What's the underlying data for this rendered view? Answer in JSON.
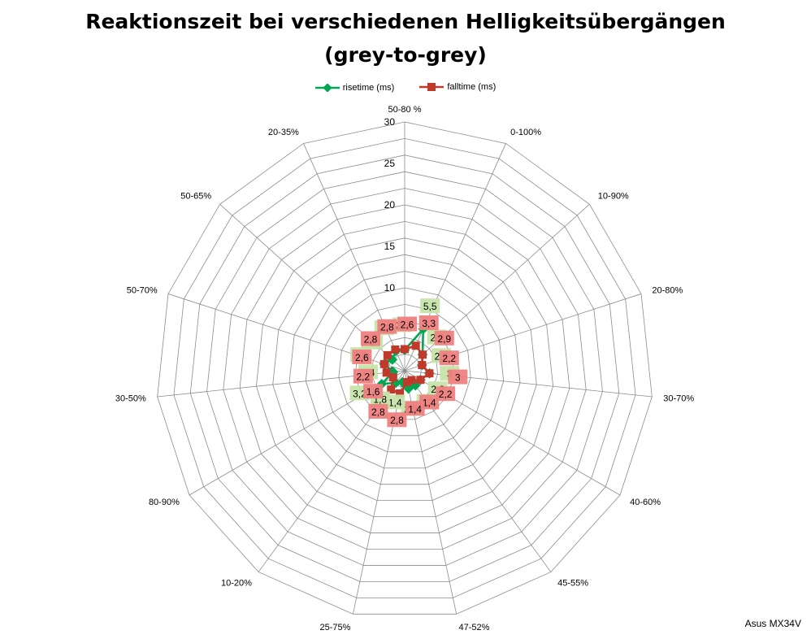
{
  "title_line1": "Reaktionszeit bei verschiedenen Helligkeitsübergängen",
  "title_line2": "(grey-to-grey)",
  "watermark": "Asus MX34V",
  "colors": {
    "risetime_line": "#00a651",
    "falltime_line": "#c0392b",
    "risetime_label_bg": "#c6e3a8",
    "falltime_label_bg": "#f08080",
    "falltime_label_bg_alt": "#e2703a",
    "grid": "#8c8c8c"
  },
  "chart_data": {
    "type": "radar",
    "title": "Reaktionszeit bei verschiedenen Helligkeitsübergängen (grey-to-grey)",
    "legend_position": "top",
    "grid": true,
    "rlim": [
      0,
      30
    ],
    "ticks": [
      "0",
      "5",
      "10",
      "15",
      "20",
      "25",
      "30"
    ],
    "tick_values": [
      0,
      5,
      10,
      15,
      20,
      25,
      30
    ],
    "categories": [
      "50-80 %",
      "0-100%",
      "10-90%",
      "20-80%",
      "30-70%",
      "40-60%",
      "45-55%",
      "47-52%",
      "25-75%",
      "10-20%",
      "80-90%",
      "30-50%",
      "50-70%",
      "50-65%",
      "20-35%"
    ],
    "series": [
      {
        "name": "risetime (ms)",
        "values": [
          2.5,
          5.5,
          2.9,
          2.2,
          3.0,
          2.2,
          2.2,
          2.2,
          1.4,
          1.8,
          3.2,
          1.4,
          2.6,
          2.0,
          2.6
        ],
        "labels": [
          "2,5",
          "5,5",
          "2,9",
          "2,2",
          "3",
          "2,2",
          "2,2",
          "2,2",
          "1,4",
          "1,8",
          "3,2",
          "1,4",
          "2,6",
          "2",
          "2,6"
        ]
      },
      {
        "name": "falltime (ms)",
        "values": [
          2.6,
          3.3,
          2.9,
          2.2,
          3.0,
          2.2,
          1.4,
          1.4,
          2.8,
          2.8,
          1.6,
          2.2,
          2.6,
          2.8,
          2.8
        ],
        "labels": [
          "2,6",
          "3,3",
          "2,9",
          "2,2",
          "3",
          "2,2",
          "1,4",
          "1,4",
          "2,8",
          "2,8",
          "1,6",
          "2,2",
          "2,6",
          "2,8",
          "2,8"
        ]
      }
    ]
  }
}
